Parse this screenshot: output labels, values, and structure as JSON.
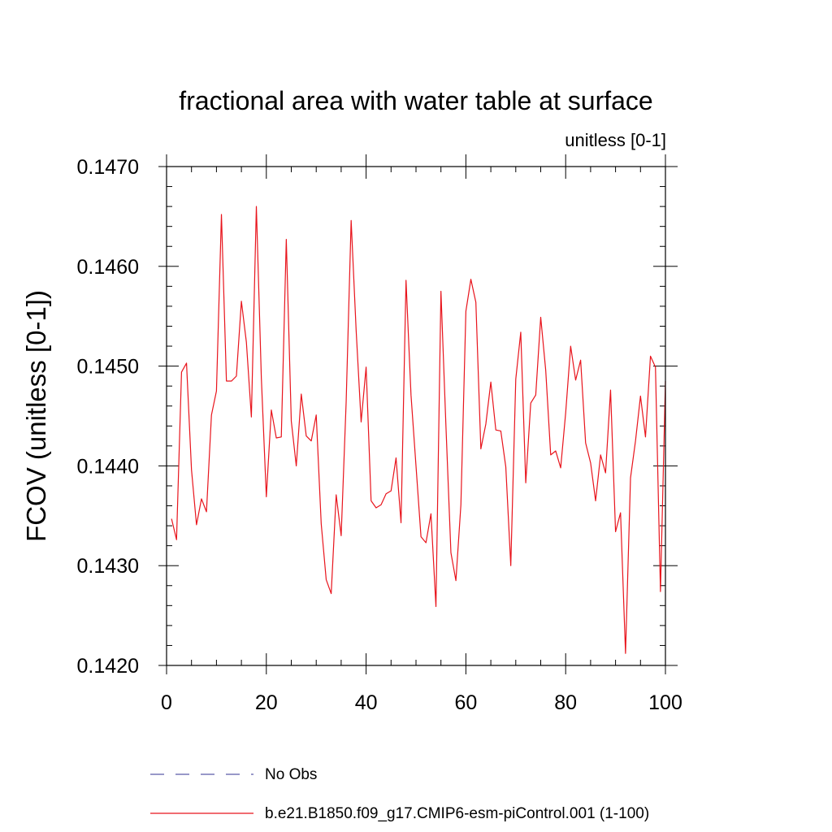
{
  "chart_data": {
    "type": "line",
    "title": "fractional area with water table at surface",
    "subtitle": "unitless [0-1]",
    "xlabel": "",
    "ylabel": "FCOV  (unitless [0-1])",
    "xlim": [
      0,
      100
    ],
    "ylim": [
      0.142,
      0.147
    ],
    "xticks": [
      0,
      20,
      40,
      60,
      80,
      100
    ],
    "xtick_labels": [
      "0",
      "20",
      "40",
      "60",
      "80",
      "100"
    ],
    "yticks": [
      0.142,
      0.143,
      0.144,
      0.145,
      0.146,
      0.147
    ],
    "ytick_labels": [
      "0.1420",
      "0.1430",
      "0.1440",
      "0.1450",
      "0.1460",
      "0.1470"
    ],
    "grid": false,
    "legend_position": "bottom",
    "series": [
      {
        "name": "No Obs",
        "style": "dashed",
        "color": "#5b5ba8",
        "values": []
      },
      {
        "name": "b.e21.B1850.f09_g17.CMIP6-esm-piControl.001 (1-100)",
        "style": "solid",
        "color": "#e8141c",
        "x": [
          1,
          2,
          3,
          4,
          5,
          6,
          7,
          8,
          9,
          10,
          11,
          12,
          13,
          14,
          15,
          16,
          17,
          18,
          19,
          20,
          21,
          22,
          23,
          24,
          25,
          26,
          27,
          28,
          29,
          30,
          31,
          32,
          33,
          34,
          35,
          36,
          37,
          38,
          39,
          40,
          41,
          42,
          43,
          44,
          45,
          46,
          47,
          48,
          49,
          50,
          51,
          52,
          53,
          54,
          55,
          56,
          57,
          58,
          59,
          60,
          61,
          62,
          63,
          64,
          65,
          66,
          67,
          68,
          69,
          70,
          71,
          72,
          73,
          74,
          75,
          76,
          77,
          78,
          79,
          80,
          81,
          82,
          83,
          84,
          85,
          86,
          87,
          88,
          89,
          90,
          91,
          92,
          93,
          94,
          95,
          96,
          97,
          98,
          99,
          100
        ],
        "values": [
          0.14347,
          0.14326,
          0.14494,
          0.14503,
          0.14396,
          0.14341,
          0.14367,
          0.14354,
          0.14451,
          0.14475,
          0.14652,
          0.14485,
          0.14485,
          0.1449,
          0.14565,
          0.14524,
          0.14449,
          0.1466,
          0.14488,
          0.14369,
          0.14456,
          0.14428,
          0.14429,
          0.14627,
          0.14445,
          0.144,
          0.14472,
          0.1443,
          0.14425,
          0.14451,
          0.14342,
          0.14286,
          0.14272,
          0.14371,
          0.1433,
          0.14464,
          0.14646,
          0.14536,
          0.14444,
          0.14499,
          0.14365,
          0.14358,
          0.14361,
          0.14372,
          0.14375,
          0.14408,
          0.14343,
          0.14586,
          0.14471,
          0.144,
          0.14329,
          0.14323,
          0.14352,
          0.14259,
          0.14575,
          0.1444,
          0.14313,
          0.14285,
          0.14361,
          0.14555,
          0.14587,
          0.14564,
          0.14417,
          0.14442,
          0.14484,
          0.14436,
          0.14435,
          0.14399,
          0.143,
          0.14487,
          0.14534,
          0.14383,
          0.14463,
          0.14471,
          0.14549,
          0.14496,
          0.14411,
          0.14415,
          0.14398,
          0.14453,
          0.1452,
          0.14486,
          0.14506,
          0.14423,
          0.14403,
          0.14365,
          0.14411,
          0.14393,
          0.14476,
          0.14334,
          0.14353,
          0.14212,
          0.14388,
          0.14425,
          0.1447,
          0.14429,
          0.1451,
          0.14499,
          0.14274,
          0.14485
        ]
      }
    ]
  }
}
